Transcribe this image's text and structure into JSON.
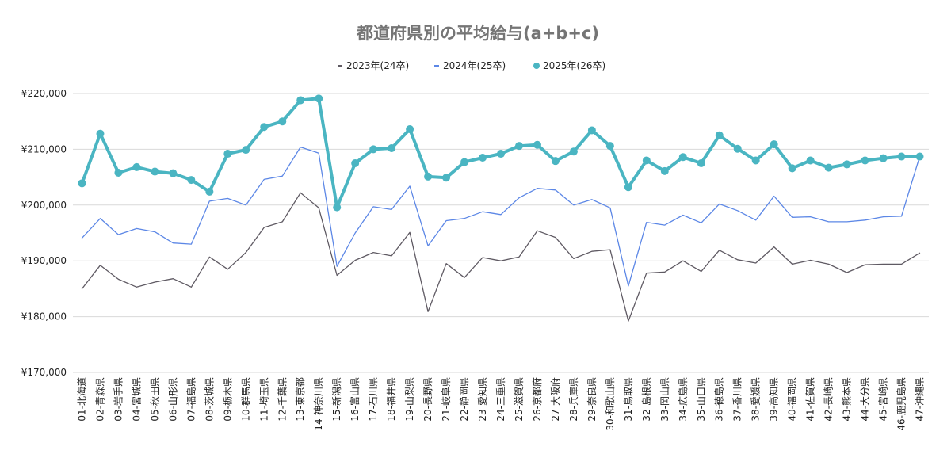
{
  "chart_data": {
    "type": "line",
    "title": "都道府県別の平均給与(a+b+c)",
    "xlabel": "",
    "ylabel": "",
    "ylim": [
      170000,
      220000
    ],
    "yticks": [
      170000,
      180000,
      190000,
      200000,
      210000,
      220000
    ],
    "ytick_labels": [
      "¥170,000",
      "¥180,000",
      "¥190,000",
      "¥200,000",
      "¥210,000",
      "¥220,000"
    ],
    "grid": true,
    "legend_position": "top",
    "categories": [
      "01-北海道",
      "02-青森県",
      "03-岩手県",
      "04-宮城県",
      "05-秋田県",
      "06-山形県",
      "07-福島県",
      "08-茨城県",
      "09-栃木県",
      "10-群馬県",
      "11-埼玉県",
      "12-千葉県",
      "13-東京都",
      "14-神奈川県",
      "15-新潟県",
      "16-富山県",
      "17-石川県",
      "18-福井県",
      "19-山梨県",
      "20-長野県",
      "21-岐阜県",
      "22-静岡県",
      "23-愛知県",
      "24-三重県",
      "25-滋賀県",
      "26-京都府",
      "27-大阪府",
      "28-兵庫県",
      "29-奈良県",
      "30-和歌山県",
      "31-鳥取県",
      "32-島根県",
      "33-岡山県",
      "34-広島県",
      "35-山口県",
      "36-徳島県",
      "37-香川県",
      "38-愛媛県",
      "39-高知県",
      "40-福岡県",
      "41-佐賀県",
      "42-長崎県",
      "43-熊本県",
      "44-大分県",
      "45-宮崎県",
      "46-鹿児島県",
      "47-沖縄県"
    ],
    "series": [
      {
        "name": "2023年(24卒)",
        "color": "#5f5a63",
        "style": "thin",
        "values": [
          185000,
          189200,
          186700,
          185300,
          186200,
          186800,
          185300,
          190700,
          188500,
          191500,
          196000,
          197000,
          202200,
          199500,
          187400,
          190100,
          191500,
          190900,
          195100,
          180900,
          189500,
          187000,
          190600,
          190000,
          190700,
          195400,
          194200,
          190400,
          191700,
          192000,
          179200,
          187800,
          188000,
          190000,
          188100,
          191900,
          190200,
          189600,
          192500,
          189400,
          190100,
          189400,
          187900,
          189300,
          189400,
          189400,
          191400
        ]
      },
      {
        "name": "2024年(25卒)",
        "color": "#5c87e6",
        "style": "thin",
        "values": [
          194100,
          197600,
          194700,
          195800,
          195200,
          193200,
          193000,
          200700,
          201200,
          200000,
          204600,
          205200,
          210400,
          209300,
          189000,
          195000,
          199700,
          199200,
          203400,
          192700,
          197200,
          197600,
          198800,
          198300,
          201300,
          203000,
          202700,
          200000,
          201000,
          199500,
          185500,
          196900,
          196400,
          198200,
          196800,
          200200,
          199000,
          197300,
          201600,
          197800,
          197900,
          197000,
          197000,
          197300,
          197900,
          198000,
          208700
        ]
      },
      {
        "name": "2025年(26卒)",
        "color": "#4ab5c2",
        "style": "thick-markers",
        "values": [
          203900,
          212800,
          205800,
          206800,
          206000,
          205700,
          204500,
          202400,
          209200,
          209900,
          214000,
          215000,
          218800,
          219100,
          199600,
          207500,
          210000,
          210200,
          213600,
          205100,
          204900,
          207700,
          208500,
          209200,
          210600,
          210800,
          207900,
          209600,
          213400,
          210600,
          203200,
          208000,
          206100,
          208600,
          207500,
          212500,
          210100,
          208000,
          210900,
          206600,
          208000,
          206700,
          207300,
          208000,
          208400,
          208700,
          208700
        ]
      }
    ]
  }
}
